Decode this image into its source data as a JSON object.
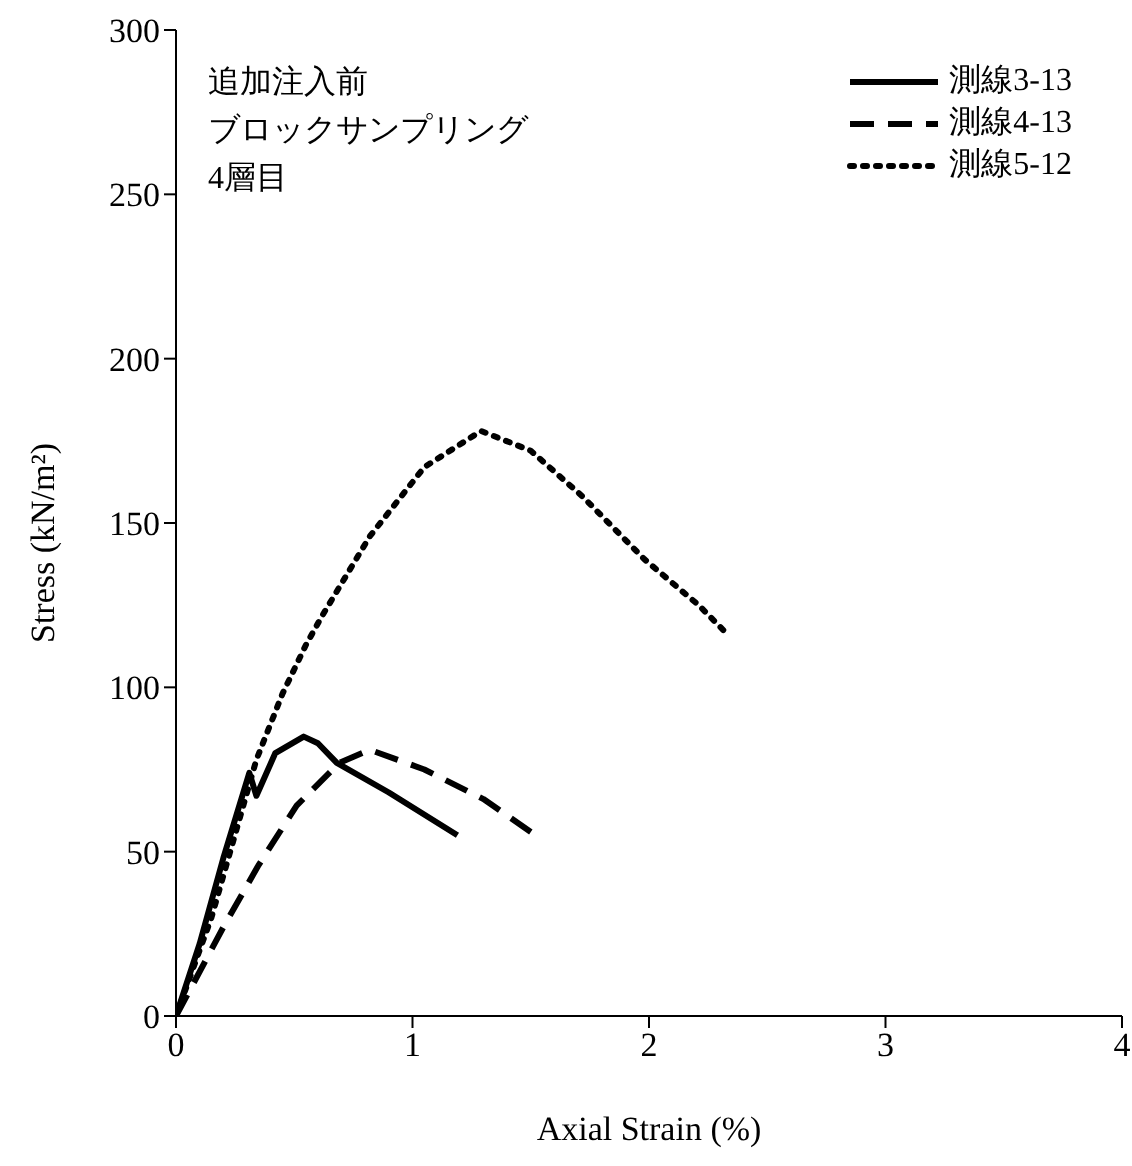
{
  "chart_data": {
    "type": "line",
    "xlabel": "Axial Strain (%)",
    "ylabel": "Stress (kN/m²)",
    "annotations": [
      "追加注入前",
      "ブロックサンプリング",
      "4層目"
    ],
    "xlim": [
      0,
      4
    ],
    "xticks": [
      0,
      1,
      2,
      3,
      4
    ],
    "ylim": [
      0,
      300
    ],
    "yticks": [
      0,
      50,
      100,
      150,
      200,
      250,
      300
    ],
    "grid": false,
    "legend": "top right",
    "marker": "none",
    "series": [
      {
        "name": "測線3-13",
        "color": "#000000",
        "line_style": "solid",
        "x": [
          0,
          0.1,
          0.2,
          0.31,
          0.34,
          0.42,
          0.54,
          0.6,
          0.68,
          0.9,
          1.19
        ],
        "values": [
          0,
          22,
          48,
          74,
          67,
          80,
          85,
          83,
          77,
          68,
          55
        ]
      },
      {
        "name": "測線4-13",
        "color": "#000000",
        "line_style": "dashed",
        "x": [
          0,
          0.2,
          0.35,
          0.51,
          0.69,
          0.82,
          1.05,
          1.3,
          1.52
        ],
        "values": [
          0,
          27,
          46,
          64,
          77,
          81,
          75,
          66,
          55
        ]
      },
      {
        "name": "測線5-12",
        "color": "#000000",
        "line_style": "dotted",
        "x": [
          0,
          0.15,
          0.34,
          0.45,
          0.55,
          0.62,
          0.82,
          1.05,
          1.29,
          1.5,
          1.72,
          1.98,
          2.21,
          2.32
        ],
        "values": [
          0,
          30,
          78,
          98,
          113,
          122,
          146,
          167,
          178,
          172,
          158,
          139,
          125,
          117
        ]
      }
    ]
  }
}
